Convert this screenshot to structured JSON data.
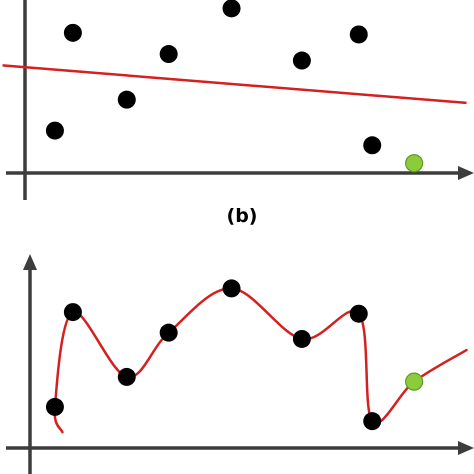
{
  "panel_labels": {
    "b": "(b)"
  },
  "colors": {
    "axes": "#3d3d3d",
    "fit_line": "#d42020",
    "data_point": "#000000",
    "test_point": "#8ccc3c",
    "test_point_edge": "#5f9a1e",
    "background": "#ffffff"
  },
  "chart_data": [
    {
      "type": "scatter",
      "title": "",
      "xlabel": "",
      "ylabel": "",
      "xlim": [
        0,
        30
      ],
      "ylim": [
        0,
        10
      ],
      "grid": false,
      "legend": "none",
      "axis_tick_labels": "none",
      "series": [
        {
          "role": "data",
          "x": [
            2.0,
            3.2,
            6.8,
            9.6,
            13.8,
            18.5,
            22.3,
            23.2
          ],
          "y": [
            2.6,
            8.6,
            4.5,
            7.3,
            10.1,
            6.9,
            8.5,
            1.7
          ]
        },
        {
          "role": "test",
          "x": [
            26.0
          ],
          "y": [
            0.6
          ]
        }
      ],
      "fit": {
        "type": "line",
        "x": [
          -1.5,
          29.5
        ],
        "y": [
          6.6,
          4.3
        ]
      }
    },
    {
      "type": "scatter",
      "title": "",
      "xlabel": "",
      "ylabel": "",
      "xlim": [
        0,
        30
      ],
      "ylim": [
        0,
        10
      ],
      "grid": false,
      "legend": "none",
      "axis_tick_labels": "none",
      "series": [
        {
          "role": "data",
          "x": [
            2.0,
            3.2,
            6.8,
            9.6,
            13.8,
            18.5,
            22.3,
            23.2
          ],
          "y": [
            2.6,
            8.6,
            4.5,
            7.3,
            10.1,
            6.9,
            8.5,
            1.7
          ]
        },
        {
          "role": "test",
          "x": [
            26.0
          ],
          "y": [
            4.2
          ]
        }
      ],
      "fit": {
        "type": "curve",
        "x": [
          2.5,
          2.0,
          3.2,
          6.8,
          9.6,
          13.8,
          18.5,
          22.3,
          23.2,
          26.0,
          29.5
        ],
        "y": [
          1.0,
          2.6,
          8.6,
          4.5,
          7.3,
          10.1,
          6.9,
          8.5,
          1.7,
          4.2,
          6.2
        ]
      }
    }
  ]
}
